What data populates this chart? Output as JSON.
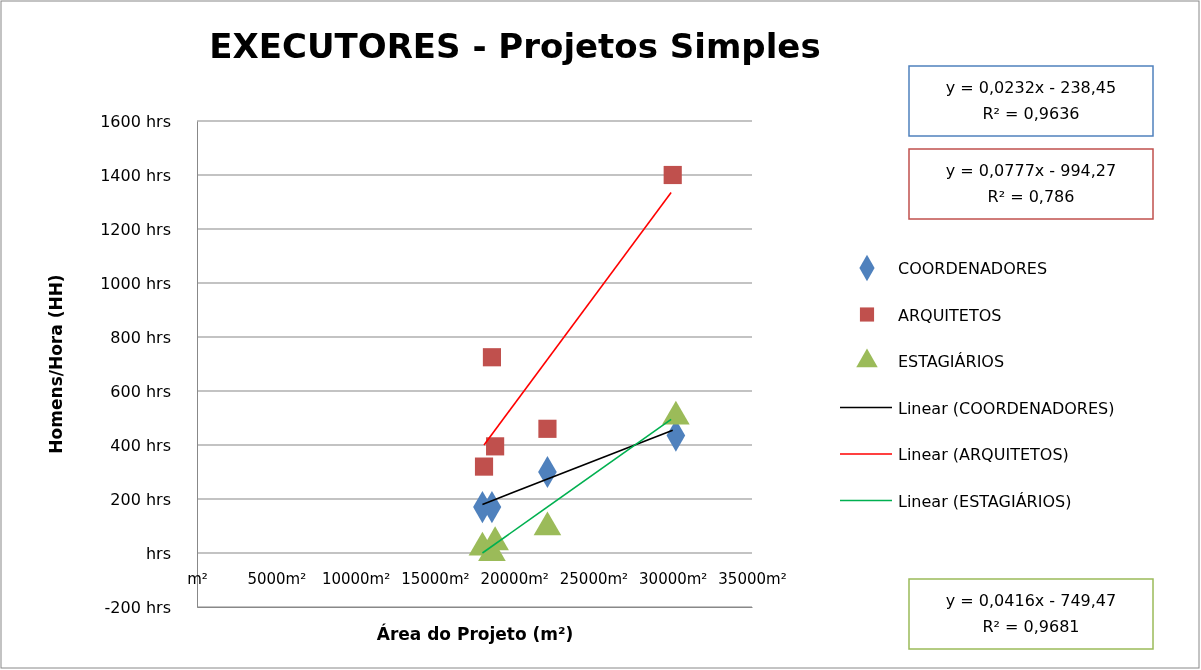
{
  "chart_data": {
    "type": "scatter",
    "title": "EXECUTORES - Projetos Simples",
    "xlabel": "Área do Projeto (m²)",
    "ylabel": "Homens/Hora (HH)",
    "xlim": [
      0,
      35000
    ],
    "xticks": [
      {
        "value": 0,
        "label": "m²"
      },
      {
        "value": 5000,
        "label": "5000m²"
      },
      {
        "value": 10000,
        "label": "10000m²"
      },
      {
        "value": 15000,
        "label": "15000m²"
      },
      {
        "value": 20000,
        "label": "20000m²"
      },
      {
        "value": 25000,
        "label": "25000m²"
      },
      {
        "value": 30000,
        "label": "30000m²"
      },
      {
        "value": 35000,
        "label": "35000m²"
      }
    ],
    "ylim": [
      -200,
      1600
    ],
    "yticks": [
      {
        "value": -200,
        "label": "-200 hrs"
      },
      {
        "value": 0,
        "label": "hrs"
      },
      {
        "value": 200,
        "label": "200 hrs"
      },
      {
        "value": 400,
        "label": "400 hrs"
      },
      {
        "value": 600,
        "label": "600 hrs"
      },
      {
        "value": 800,
        "label": "800 hrs"
      },
      {
        "value": 1000,
        "label": "1000 hrs"
      },
      {
        "value": 1200,
        "label": "1200 hrs"
      },
      {
        "value": 1400,
        "label": "1400 hrs"
      },
      {
        "value": 1600,
        "label": "1600 hrs"
      }
    ],
    "grid": "y",
    "legend": "right",
    "series": [
      {
        "name": "COORDENADORES",
        "marker": "diamond",
        "color": "#4f81bd",
        "x": [
          18000,
          18600,
          22100,
          30200
        ],
        "values": [
          170,
          170,
          300,
          435
        ]
      },
      {
        "name": "ARQUITETOS",
        "marker": "square",
        "color": "#c0504d",
        "x": [
          18100,
          18600,
          18800,
          22100,
          30000
        ],
        "values": [
          320,
          725,
          395,
          460,
          1400
        ]
      },
      {
        "name": "ESTAGIÁRIOS",
        "marker": "triangle",
        "color": "#9bbb59",
        "x": [
          18000,
          18600,
          18800,
          22100,
          30200
        ],
        "values": [
          20,
          0,
          40,
          95,
          505
        ]
      },
      {
        "name": "Linear (COORDENADORES)",
        "type": "line",
        "marker": "none",
        "color": "#000000",
        "x": [
          18000,
          30000
        ],
        "values": [
          180,
          455
        ]
      },
      {
        "name": "Linear (ARQUITETOS)",
        "type": "line",
        "marker": "none",
        "color": "#ff0000",
        "x": [
          18100,
          29900
        ],
        "values": [
          400,
          1335
        ]
      },
      {
        "name": "Linear (ESTAGIÁRIOS)",
        "type": "line",
        "marker": "none",
        "color": "#00b050",
        "x": [
          18000,
          29900
        ],
        "values": [
          0,
          495
        ]
      }
    ],
    "annotations": [
      "y = 0,0232x - 238,45\nR² = 0,9636",
      "y = 0,0777x - 994,27\nR² = 0,786",
      "y = 0,0416x - 749,47\nR² = 0,9681"
    ]
  }
}
